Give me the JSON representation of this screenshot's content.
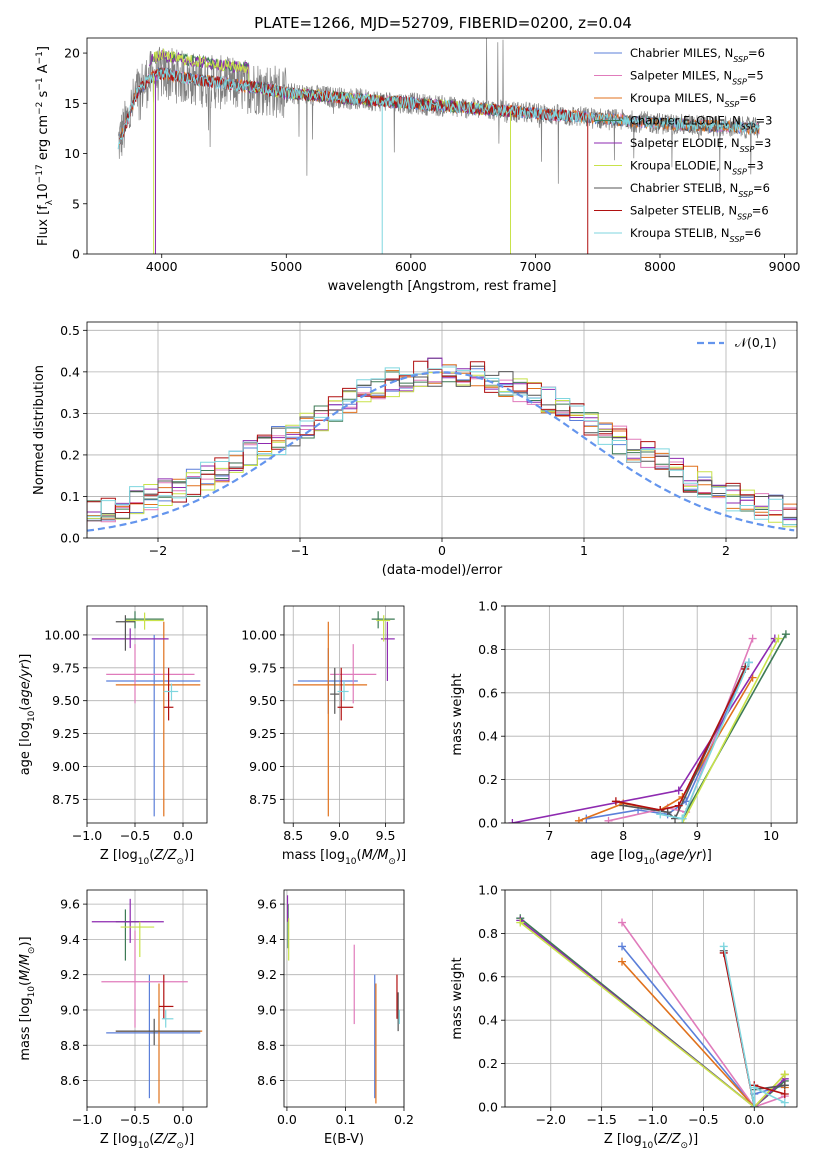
{
  "figure": {
    "title": "PLATE=1266, MJD=52709, FIBERID=0200, z=0.04"
  },
  "colors": {
    "Chabrier MILES": "#5b7fd9",
    "Salpeter MILES": "#e07bbb",
    "Kroupa MILES": "#e0711c",
    "Chabrier ELODIE": "#3d7a55",
    "Salpeter ELODIE": "#8e2ab0",
    "Kroupa ELODIE": "#c8e24a",
    "Chabrier STELIB": "#555555",
    "Salpeter STELIB": "#b01010",
    "Kroupa STELIB": "#7fd6df",
    "data": "#808080",
    "normal": "#6495ed"
  },
  "chart_data": [
    {
      "type": "line",
      "title": "PLATE=1266, MJD=52709, FIBERID=0200, z=0.04",
      "xlabel": "wavelength [Angstrom, rest frame]",
      "ylabel": "Flux [f_λ 10^-17 erg cm^-2 s^-1 A^-1]",
      "xlim": [
        3400,
        9100
      ],
      "ylim": [
        0,
        21.5
      ],
      "xticks": [
        4000,
        5000,
        6000,
        7000,
        8000,
        9000
      ],
      "yticks": [
        0,
        5,
        10,
        15,
        20
      ],
      "legend": "top-right",
      "series": [
        {
          "name": "Chabrier MILES, N_SSP=6"
        },
        {
          "name": "Salpeter MILES, N_SSP=5"
        },
        {
          "name": "Kroupa MILES, N_SSP=6"
        },
        {
          "name": "Chabrier ELODIE, N_SSP=3"
        },
        {
          "name": "Salpeter ELODIE, N_SSP=3"
        },
        {
          "name": "Kroupa ELODIE, N_SSP=3"
        },
        {
          "name": "Chabrier STELIB, N_SSP=6"
        },
        {
          "name": "Salpeter STELIB, N_SSP=6"
        },
        {
          "name": "Kroupa STELIB, N_SSP=6"
        }
      ],
      "continuum": [
        [
          3650,
          11
        ],
        [
          3700,
          12.5
        ],
        [
          3800,
          16
        ],
        [
          3900,
          17.5
        ],
        [
          4000,
          18
        ],
        [
          4200,
          17.5
        ],
        [
          4500,
          17
        ],
        [
          4800,
          16.5
        ],
        [
          5000,
          16
        ],
        [
          5500,
          15.5
        ],
        [
          6000,
          15
        ],
        [
          6500,
          14.5
        ],
        [
          7000,
          14
        ],
        [
          7500,
          13.5
        ],
        [
          8000,
          13
        ],
        [
          8500,
          12.7
        ],
        [
          8800,
          12.5
        ]
      ]
    },
    {
      "type": "line",
      "xlabel": "(data-model)/error",
      "ylabel": "Normed distribution",
      "xlim": [
        -2.5,
        2.5
      ],
      "ylim": [
        0,
        0.52
      ],
      "xticks": [
        -2,
        -1,
        0,
        1,
        2
      ],
      "yticks": [
        0.0,
        0.1,
        0.2,
        0.3,
        0.4,
        0.5
      ],
      "legend": "top-right",
      "legend_label": "𝒩(0,1)",
      "bin_width": 0.1,
      "histogram_mean": [
        0.03,
        0.035,
        0.04,
        0.04,
        0.045,
        0.055,
        0.065,
        0.075,
        0.09,
        0.1,
        0.11,
        0.12,
        0.135,
        0.15,
        0.165,
        0.18,
        0.2,
        0.215,
        0.235,
        0.25,
        0.27,
        0.29,
        0.31,
        0.33,
        0.35,
        0.36,
        0.375,
        0.385,
        0.395,
        0.4,
        0.4,
        0.4,
        0.395,
        0.385,
        0.375,
        0.36,
        0.345,
        0.33,
        0.31,
        0.29,
        0.27,
        0.25,
        0.235,
        0.215,
        0.2,
        0.18,
        0.16,
        0.145,
        0.13,
        0.115,
        0.1,
        0.09,
        0.08,
        0.07,
        0.06,
        0.05,
        0.045,
        0.04,
        0.035,
        0.03
      ]
    },
    {
      "type": "scatter",
      "xlabel": "Z [log10(Z/Z⊙)]",
      "ylabel": "age  [log10(age/yr)]",
      "xlim": [
        -1.0,
        0.25
      ],
      "ylim": [
        8.57,
        10.22
      ],
      "xticks": [
        -1.0,
        -0.5,
        0.0
      ],
      "yticks": [
        8.75,
        9.0,
        9.25,
        9.5,
        9.75,
        10.0
      ],
      "errorbars": [
        {
          "s": "Chabrier MILES",
          "x": -0.3,
          "xl": -0.8,
          "xh": 0.18,
          "y": 9.65,
          "yl": 8.62,
          "yh": 10.0
        },
        {
          "s": "Salpeter MILES",
          "x": -0.5,
          "xl": -0.8,
          "xh": 0.12,
          "y": 9.7,
          "yl": 9.48,
          "yh": 9.93
        },
        {
          "s": "Kroupa MILES",
          "x": -0.2,
          "xl": -0.7,
          "xh": 0.18,
          "y": 9.62,
          "yl": 8.62,
          "yh": 10.1
        },
        {
          "s": "Chabrier ELODIE",
          "x": -0.5,
          "xl": -0.6,
          "xh": -0.2,
          "y": 10.12,
          "yl": 10.05,
          "yh": 10.18
        },
        {
          "s": "Salpeter ELODIE",
          "x": -0.55,
          "xl": -0.95,
          "xh": -0.15,
          "y": 9.97,
          "yl": 9.9,
          "yh": 10.05
        },
        {
          "s": "Kroupa ELODIE",
          "x": -0.4,
          "xl": -0.6,
          "xh": -0.2,
          "y": 10.11,
          "yl": 10.04,
          "yh": 10.17
        },
        {
          "s": "Chabrier STELIB",
          "x": -0.6,
          "xl": -0.7,
          "xh": -0.5,
          "y": 10.1,
          "yl": 9.88,
          "yh": 10.15
        },
        {
          "s": "Salpeter STELIB",
          "x": -0.15,
          "xl": -0.2,
          "xh": -0.1,
          "y": 9.45,
          "yl": 9.35,
          "yh": 9.75
        },
        {
          "s": "Kroupa STELIB",
          "x": -0.12,
          "xl": -0.2,
          "xh": -0.05,
          "y": 9.57,
          "yl": 9.5,
          "yh": 9.63
        }
      ]
    },
    {
      "type": "scatter",
      "xlabel": "mass [log10(M/M⊙)]",
      "ylabel": "",
      "xlim": [
        8.4,
        9.7
      ],
      "ylim": [
        8.57,
        10.22
      ],
      "xticks": [
        8.5,
        9.0,
        9.5
      ],
      "yticks": [
        8.75,
        9.0,
        9.25,
        9.5,
        9.75,
        10.0
      ],
      "errorbars": [
        {
          "s": "Chabrier MILES",
          "x": 8.88,
          "xl": 8.55,
          "xh": 9.2,
          "y": 9.65,
          "yl": 9.4,
          "yh": 9.9
        },
        {
          "s": "Salpeter MILES",
          "x": 9.15,
          "xl": 8.9,
          "xh": 9.4,
          "y": 9.7,
          "yl": 9.48,
          "yh": 9.93
        },
        {
          "s": "Kroupa MILES",
          "x": 8.88,
          "xl": 8.5,
          "xh": 9.3,
          "y": 9.62,
          "yl": 8.62,
          "yh": 10.1
        },
        {
          "s": "Chabrier ELODIE",
          "x": 9.42,
          "xl": 9.35,
          "xh": 9.6,
          "y": 10.12,
          "yl": 10.05,
          "yh": 10.18
        },
        {
          "s": "Salpeter ELODIE",
          "x": 9.52,
          "xl": 9.45,
          "xh": 9.6,
          "y": 9.97,
          "yl": 9.65,
          "yh": 10.1
        },
        {
          "s": "Kroupa ELODIE",
          "x": 9.48,
          "xl": 9.4,
          "xh": 9.55,
          "y": 10.11,
          "yl": 9.95,
          "yh": 10.15
        },
        {
          "s": "Chabrier STELIB",
          "x": 8.95,
          "xl": 8.9,
          "xh": 9.0,
          "y": 9.55,
          "yl": 9.4,
          "yh": 9.75
        },
        {
          "s": "Salpeter STELIB",
          "x": 9.02,
          "xl": 8.98,
          "xh": 9.15,
          "y": 9.45,
          "yl": 9.35,
          "yh": 9.75
        },
        {
          "s": "Kroupa STELIB",
          "x": 9.05,
          "xl": 8.98,
          "xh": 9.1,
          "y": 9.57,
          "yl": 9.5,
          "yh": 9.65
        }
      ]
    },
    {
      "type": "line",
      "xlabel": "age  [log10(age/yr)]",
      "ylabel": "mass weight",
      "xlim": [
        6.4,
        10.35
      ],
      "ylim": [
        0,
        1.0
      ],
      "xticks": [
        7,
        8,
        9,
        10
      ],
      "yticks": [
        0.0,
        0.2,
        0.4,
        0.6,
        0.8,
        1.0
      ],
      "series": [
        {
          "s": "Chabrier MILES",
          "x": [
            7.5,
            8.2,
            8.6,
            8.85,
            9.7
          ],
          "y": [
            0.02,
            0.06,
            0.04,
            0.1,
            0.74
          ]
        },
        {
          "s": "Salpeter MILES",
          "x": [
            7.8,
            8.6,
            8.85,
            9.75
          ],
          "y": [
            0.01,
            0.07,
            0.05,
            0.85
          ]
        },
        {
          "s": "Kroupa MILES",
          "x": [
            7.4,
            8.0,
            8.5,
            8.8,
            9.75
          ],
          "y": [
            0.01,
            0.09,
            0.06,
            0.12,
            0.67
          ]
        },
        {
          "s": "Chabrier ELODIE",
          "x": [
            8.8,
            10.2
          ],
          "y": [
            0.02,
            0.87
          ]
        },
        {
          "s": "Salpeter ELODIE",
          "x": [
            6.5,
            8.75,
            10.05
          ],
          "y": [
            0.0,
            0.15,
            0.85
          ]
        },
        {
          "s": "Kroupa ELODIE",
          "x": [
            8.8,
            10.1
          ],
          "y": [
            0.0,
            0.85
          ]
        },
        {
          "s": "Chabrier STELIB",
          "x": [
            8.0,
            8.6,
            8.7,
            9.65
          ],
          "y": [
            0.08,
            0.05,
            0.02,
            0.72
          ]
        },
        {
          "s": "Salpeter STELIB",
          "x": [
            7.9,
            8.5,
            8.75,
            9.65
          ],
          "y": [
            0.1,
            0.06,
            0.08,
            0.71
          ]
        },
        {
          "s": "Kroupa STELIB",
          "x": [
            8.5,
            8.8,
            9.7
          ],
          "y": [
            0.04,
            0.02,
            0.74
          ]
        }
      ]
    },
    {
      "type": "scatter",
      "xlabel": "Z [log10(Z/Z⊙)]",
      "ylabel": "mass [log10(M/M⊙)]",
      "xlim": [
        -1.0,
        0.25
      ],
      "ylim": [
        8.45,
        9.68
      ],
      "xticks": [
        -1.0,
        -0.5,
        0.0
      ],
      "yticks": [
        8.6,
        8.8,
        9.0,
        9.2,
        9.4,
        9.6
      ],
      "errorbars": [
        {
          "s": "Chabrier MILES",
          "x": -0.35,
          "xl": -0.8,
          "xh": 0.18,
          "y": 8.87,
          "yl": 8.5,
          "yh": 9.2
        },
        {
          "s": "Salpeter MILES",
          "x": -0.5,
          "xl": -0.85,
          "xh": 0.05,
          "y": 9.16,
          "yl": 8.9,
          "yh": 9.45
        },
        {
          "s": "Kroupa MILES",
          "x": -0.25,
          "xl": -0.7,
          "xh": 0.2,
          "y": 8.88,
          "yl": 8.47,
          "yh": 9.15
        },
        {
          "s": "Chabrier ELODIE",
          "x": -0.6,
          "xl": -0.7,
          "xh": -0.45,
          "y": 9.5,
          "yl": 9.28,
          "yh": 9.57
        },
        {
          "s": "Salpeter ELODIE",
          "x": -0.55,
          "xl": -0.95,
          "xh": -0.2,
          "y": 9.5,
          "yl": 9.38,
          "yh": 9.63
        },
        {
          "s": "Kroupa ELODIE",
          "x": -0.45,
          "xl": -0.65,
          "xh": -0.3,
          "y": 9.47,
          "yl": 9.3,
          "yh": 9.5
        },
        {
          "s": "Chabrier STELIB",
          "x": -0.3,
          "xl": -0.7,
          "xh": 0.18,
          "y": 8.88,
          "yl": 8.8,
          "yh": 8.95
        },
        {
          "s": "Salpeter STELIB",
          "x": -0.2,
          "xl": -0.25,
          "xh": -0.1,
          "y": 9.02,
          "yl": 8.95,
          "yh": 9.2
        },
        {
          "s": "Kroupa STELIB",
          "x": -0.18,
          "xl": -0.22,
          "xh": -0.1,
          "y": 8.95,
          "yl": 8.9,
          "yh": 9.0
        }
      ]
    },
    {
      "type": "scatter",
      "xlabel": "E(B-V)",
      "ylabel": "",
      "xlim": [
        -0.005,
        0.2
      ],
      "ylim": [
        8.45,
        9.68
      ],
      "xticks": [
        0.0,
        0.1,
        0.2
      ],
      "yticks": [
        8.6,
        8.8,
        9.0,
        9.2,
        9.4,
        9.6
      ],
      "errorbars": [
        {
          "s": "Chabrier MILES",
          "x": 0.15,
          "y": 8.87,
          "yl": 8.5,
          "yh": 9.2
        },
        {
          "s": "Salpeter MILES",
          "x": 0.115,
          "y": 9.16,
          "yl": 8.92,
          "yh": 9.37
        },
        {
          "s": "Kroupa MILES",
          "x": 0.152,
          "y": 8.88,
          "yl": 8.47,
          "yh": 9.15
        },
        {
          "s": "Chabrier ELODIE",
          "x": 0.002,
          "y": 9.5,
          "yl": 9.35,
          "yh": 9.6
        },
        {
          "s": "Salpeter ELODIE",
          "x": 0.001,
          "y": 9.57,
          "yl": 9.5,
          "yh": 9.65
        },
        {
          "s": "Kroupa ELODIE",
          "x": 0.003,
          "y": 9.4,
          "yl": 9.28,
          "yh": 9.52
        },
        {
          "s": "Chabrier STELIB",
          "x": 0.19,
          "y": 8.95,
          "yl": 8.88,
          "yh": 9.1
        },
        {
          "s": "Salpeter STELIB",
          "x": 0.188,
          "y": 9.05,
          "yl": 8.95,
          "yh": 9.2
        },
        {
          "s": "Kroupa STELIB",
          "x": 0.192,
          "y": 8.96,
          "yl": 8.92,
          "yh": 9.0
        }
      ]
    },
    {
      "type": "line",
      "xlabel": "Z [log10(Z/Z⊙)]",
      "ylabel": "mass weight",
      "xlim": [
        -2.45,
        0.42
      ],
      "ylim": [
        0,
        1.0
      ],
      "xticks": [
        -2.0,
        -1.5,
        -1.0,
        -0.5,
        0.0
      ],
      "yticks": [
        0.0,
        0.2,
        0.4,
        0.6,
        0.8,
        1.0
      ],
      "series": [
        {
          "s": "Chabrier MILES",
          "x": [
            -1.3,
            0.0,
            0.0,
            0.3
          ],
          "y": [
            0.74,
            0.0,
            0.06,
            0.1
          ]
        },
        {
          "s": "Salpeter MILES",
          "x": [
            -1.3,
            0.0,
            0.3
          ],
          "y": [
            0.85,
            0.0,
            0.05
          ]
        },
        {
          "s": "Kroupa MILES",
          "x": [
            -1.3,
            0.0,
            0.3,
            0.3
          ],
          "y": [
            0.67,
            0.0,
            0.15,
            0.09
          ]
        },
        {
          "s": "Chabrier ELODIE",
          "x": [
            -2.3,
            0.0,
            0.3
          ],
          "y": [
            0.87,
            0.0,
            0.12
          ]
        },
        {
          "s": "Salpeter ELODIE",
          "x": [
            -2.3,
            0.0,
            0.3
          ],
          "y": [
            0.86,
            0.0,
            0.13
          ]
        },
        {
          "s": "Kroupa ELODIE",
          "x": [
            -2.3,
            0.0,
            0.3
          ],
          "y": [
            0.85,
            0.0,
            0.15
          ]
        },
        {
          "s": "Chabrier STELIB",
          "x": [
            -0.3,
            0.0,
            0.0,
            0.3
          ],
          "y": [
            0.72,
            0.0,
            0.08,
            0.1
          ]
        },
        {
          "s": "Salpeter STELIB",
          "x": [
            -0.3,
            0.0,
            0.0,
            0.3
          ],
          "y": [
            0.71,
            0.0,
            0.1,
            0.06
          ]
        },
        {
          "s": "Kroupa STELIB",
          "x": [
            -0.3,
            0.0,
            0.0,
            0.3
          ],
          "y": [
            0.74,
            0.0,
            0.09,
            0.02
          ]
        }
      ]
    }
  ]
}
